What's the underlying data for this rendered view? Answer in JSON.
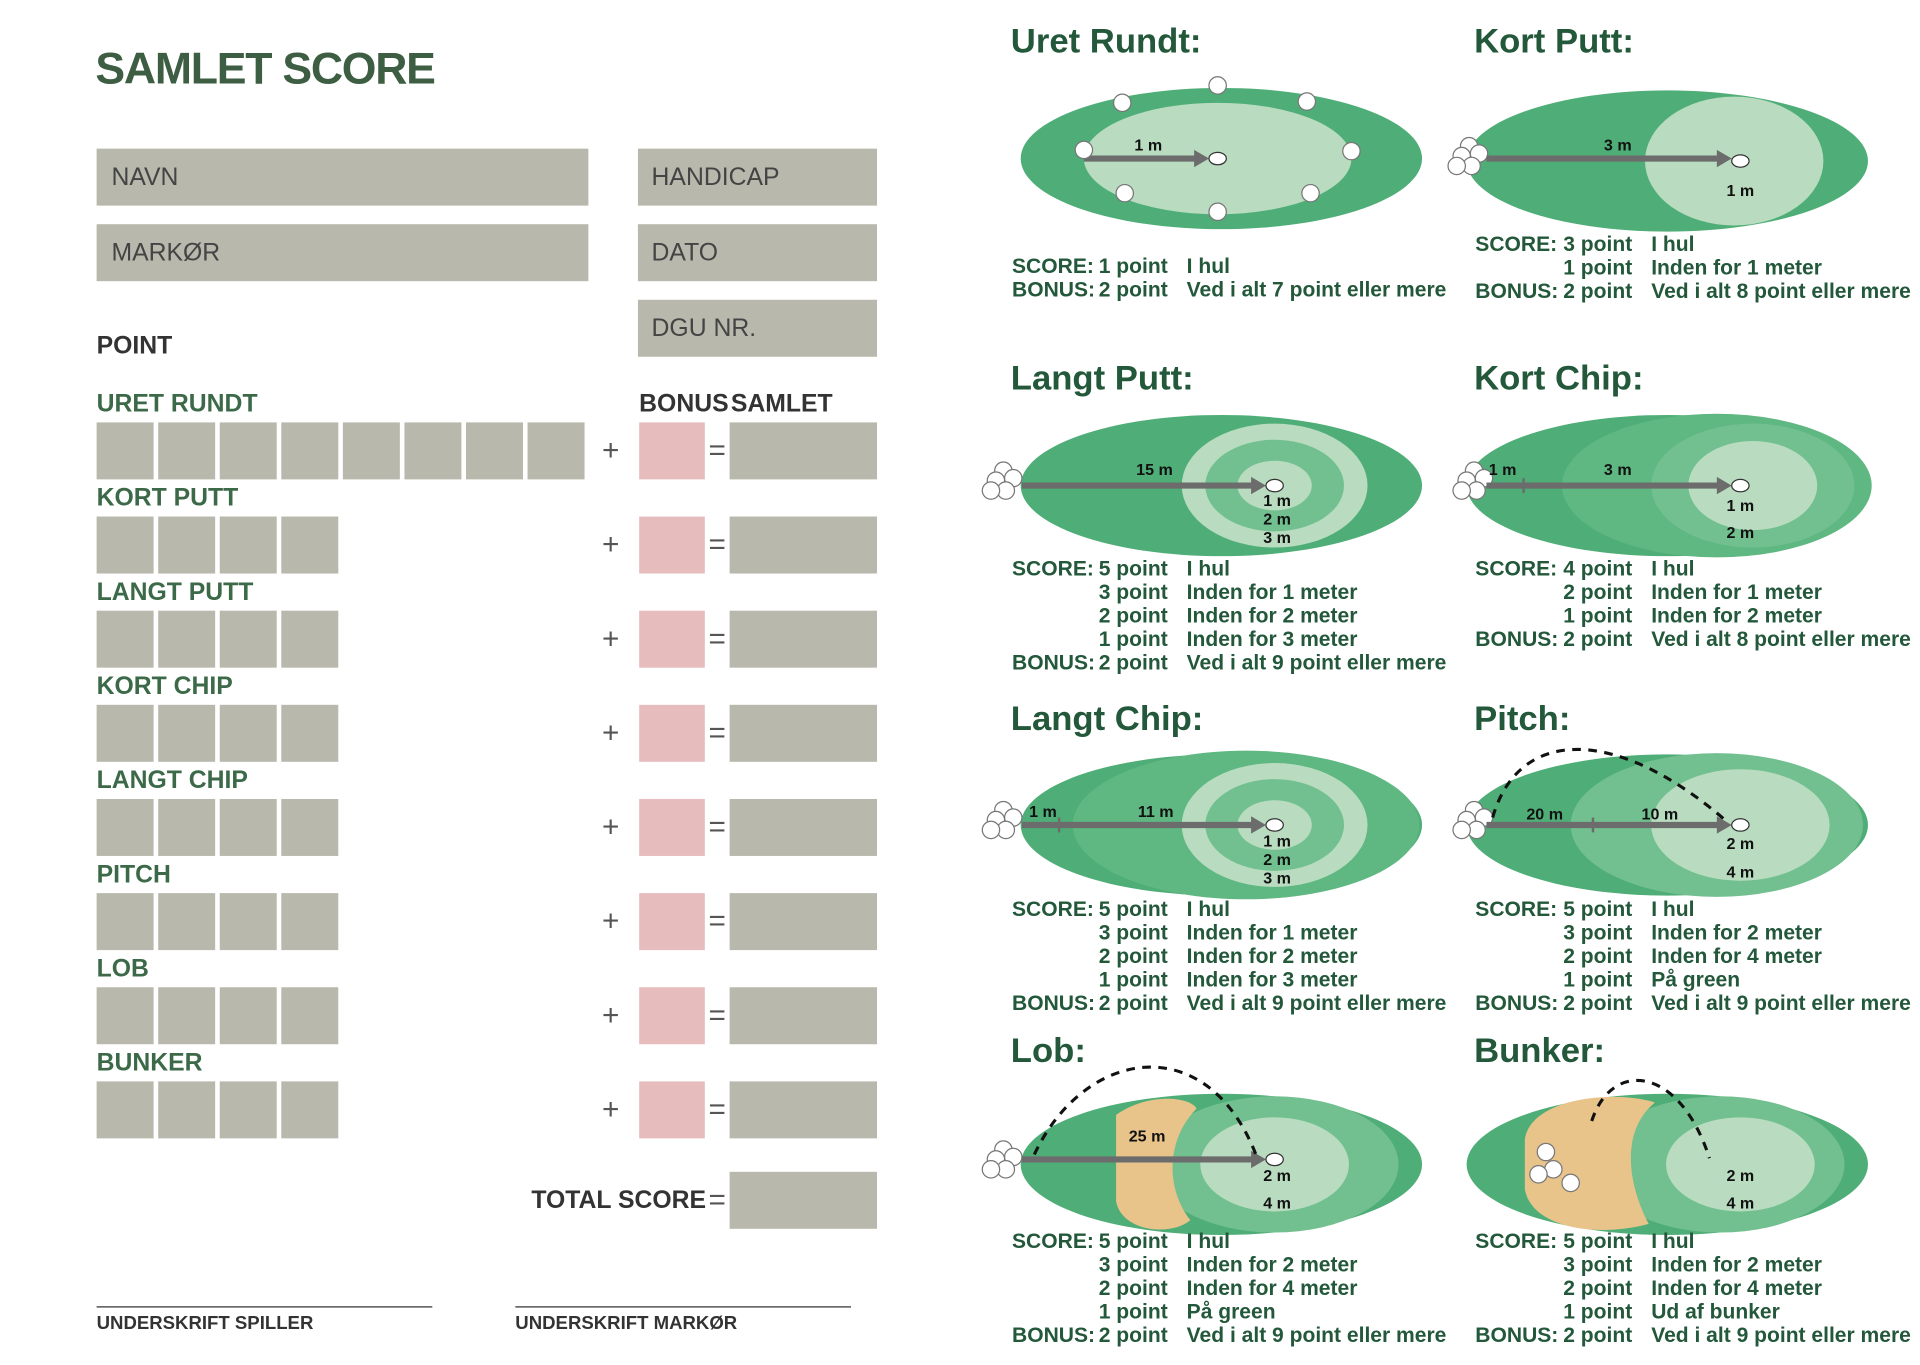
{
  "header": {
    "title": "SAMLET SCORE"
  },
  "fields": {
    "left": [
      "NAVN",
      "MARKØR"
    ],
    "right": [
      "HANDICAP",
      "DATO",
      "DGU NR."
    ]
  },
  "scorecard": {
    "point_label": "POINT",
    "bonus_label": "BONUS",
    "total_label": "SAMLET",
    "plus": "+",
    "equals": "=",
    "rows": [
      "URET RUNDT",
      "KORT PUTT",
      "LANGT PUTT",
      "KORT CHIP",
      "LANGT CHIP",
      "PITCH",
      "LOB",
      "BUNKER"
    ],
    "total_score_label": "TOTAL SCORE"
  },
  "signatures": [
    "UNDERSKRIFT SPILLER",
    "UNDERSKRIFT MARKØR"
  ],
  "drills": [
    {
      "title": "Uret Rundt:",
      "labels": [
        "1 m"
      ],
      "rows": [
        {
          "label": "SCORE:",
          "points": "1 point",
          "text": "I hul"
        },
        {
          "label": "BONUS:",
          "points": "2 point",
          "text": "Ved i alt 7 point eller mere"
        }
      ]
    },
    {
      "title": "Kort Putt:",
      "labels": [
        "3 m",
        "1 m"
      ],
      "rows": [
        {
          "label": "SCORE:",
          "points": "3 point",
          "text": "I hul"
        },
        {
          "points": "1 point",
          "text": "Inden for 1 meter"
        },
        {
          "label": "BONUS:",
          "points": "2 point",
          "text": "Ved i alt 8 point eller mere"
        }
      ]
    },
    {
      "title": "Langt Putt:",
      "labels": [
        "15 m",
        "1 m",
        "2 m",
        "3 m"
      ],
      "rows": [
        {
          "label": "SCORE:",
          "points": "5 point",
          "text": "I hul"
        },
        {
          "points": "3 point",
          "text": "Inden for 1 meter"
        },
        {
          "points": "2 point",
          "text": "Inden for 2 meter"
        },
        {
          "points": "1 point",
          "text": "Inden for 3 meter"
        },
        {
          "label": "BONUS:",
          "points": "2 point",
          "text": "Ved i alt 9 point eller mere"
        }
      ]
    },
    {
      "title": "Kort Chip:",
      "labels": [
        "1 m",
        "3 m",
        "1 m",
        "2 m"
      ],
      "rows": [
        {
          "label": "SCORE:",
          "points": "4 point",
          "text": "I hul"
        },
        {
          "points": "2 point",
          "text": "Inden for 1 meter"
        },
        {
          "points": "1 point",
          "text": "Inden for 2 meter"
        },
        {
          "label": "BONUS:",
          "points": "2 point",
          "text": "Ved i alt 8 point eller mere"
        }
      ]
    },
    {
      "title": "Langt Chip:",
      "labels": [
        "1 m",
        "11 m",
        "1 m",
        "2 m",
        "3 m"
      ],
      "rows": [
        {
          "label": "SCORE:",
          "points": "5 point",
          "text": "I hul"
        },
        {
          "points": "3 point",
          "text": "Inden for 1 meter"
        },
        {
          "points": "2 point",
          "text": "Inden for 2 meter"
        },
        {
          "points": "1 point",
          "text": "Inden for 3 meter"
        },
        {
          "label": "BONUS:",
          "points": "2 point",
          "text": "Ved i alt 9 point eller mere"
        }
      ]
    },
    {
      "title": "Pitch:",
      "labels": [
        "20 m",
        "10 m",
        "2 m",
        "4 m"
      ],
      "rows": [
        {
          "label": "SCORE:",
          "points": "5 point",
          "text": "I hul"
        },
        {
          "points": "3 point",
          "text": "Inden for 2 meter"
        },
        {
          "points": "2 point",
          "text": "Inden for 4 meter"
        },
        {
          "points": "1 point",
          "text": "På green"
        },
        {
          "label": "BONUS:",
          "points": "2 point",
          "text": "Ved i alt 9 point eller mere"
        }
      ]
    },
    {
      "title": "Lob:",
      "labels": [
        "25 m",
        "2 m",
        "4 m"
      ],
      "rows": [
        {
          "label": "SCORE:",
          "points": "5 point",
          "text": "I hul"
        },
        {
          "points": "3 point",
          "text": "Inden for 2 meter"
        },
        {
          "points": "2 point",
          "text": "Inden for 4 meter"
        },
        {
          "points": "1 point",
          "text": "På green"
        },
        {
          "label": "BONUS:",
          "points": "2 point",
          "text": "Ved i alt 9 point eller mere"
        }
      ]
    },
    {
      "title": "Bunker:",
      "labels": [
        "2 m",
        "4 m"
      ],
      "rows": [
        {
          "label": "SCORE:",
          "points": "5 point",
          "text": "I hul"
        },
        {
          "points": "3 point",
          "text": "Inden for 2 meter"
        },
        {
          "points": "2 point",
          "text": "Inden for 4 meter"
        },
        {
          "points": "1 point",
          "text": "Ud af bunker"
        },
        {
          "label": "BONUS:",
          "points": "2 point",
          "text": "Ved i alt 9 point eller mere"
        }
      ]
    }
  ]
}
